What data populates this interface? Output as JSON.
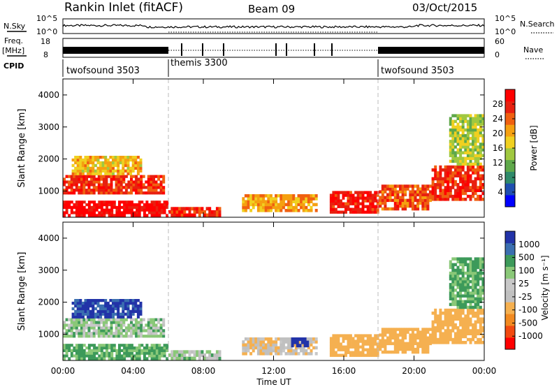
{
  "header": {
    "title": "Rankin Inlet (fitACF)",
    "beam": "Beam 09",
    "date": "03/Oct/2015"
  },
  "strips": {
    "nsky_label": "N.Sky",
    "nsearch_label": "N.Search",
    "freq_label_line1": "Freq.",
    "freq_label_line2": "[MHz]",
    "nave_label": "Nave",
    "cpid_label": "CPID",
    "nsky_left_ticks": [
      "10^5",
      "10^0"
    ],
    "nsky_right_ticks": [
      "10^5",
      "10^0"
    ],
    "freq_left_ticks": [
      "18",
      "8"
    ],
    "freq_right_ticks": [
      "60",
      "0"
    ]
  },
  "cpid_segments": [
    {
      "label": "twofsound 3503",
      "start_h": 0
    },
    {
      "label": "themis 3300",
      "start_h": 6
    },
    {
      "label": "twofsound 3503",
      "start_h": 18
    }
  ],
  "colors": {
    "power": [
      "#0000ff",
      "#1f4fb0",
      "#2f8a6a",
      "#5fa84a",
      "#a0c840",
      "#f0d020",
      "#f5a010",
      "#f06010",
      "#e82010",
      "#ff0000"
    ],
    "velocity": [
      "#ff0000",
      "#f24a10",
      "#f28a20",
      "#f5b050",
      "#c0c0c0",
      "#c8c8c8",
      "#8ac878",
      "#3d9a5a",
      "#3b6fb0",
      "#2233a8"
    ]
  },
  "chart_data": [
    {
      "type": "heatmap",
      "name": "power",
      "ylabel": "Slant Range [km]",
      "xlabel": "",
      "x_ticks": [
        "00:00",
        "04:00",
        "08:00",
        "12:00",
        "16:00",
        "20:00",
        "00:00"
      ],
      "xlim": [
        0,
        24
      ],
      "y_ticks": [
        1000,
        2000,
        3000,
        4000
      ],
      "ylim": [
        180,
        4500
      ],
      "colorbar": {
        "label": "Power [dB]",
        "ticks": [
          4,
          8,
          12,
          16,
          20,
          24,
          28
        ],
        "range": [
          0,
          32
        ]
      },
      "cells": [
        {
          "t0": 0,
          "t1": 6,
          "r0": 200,
          "r1": 700,
          "v": 30
        },
        {
          "t0": 0,
          "t1": 5.8,
          "r0": 900,
          "r1": 1500,
          "v": 26
        },
        {
          "t0": 0.5,
          "t1": 4.5,
          "r0": 1500,
          "r1": 2100,
          "v": 18
        },
        {
          "t0": 6,
          "t1": 9,
          "r0": 200,
          "r1": 500,
          "v": 27
        },
        {
          "t0": 10.2,
          "t1": 14.5,
          "r0": 350,
          "r1": 900,
          "v": 20
        },
        {
          "t0": 15.2,
          "t1": 18,
          "r0": 300,
          "r1": 1000,
          "v": 28
        },
        {
          "t0": 18,
          "t1": 21,
          "r0": 400,
          "r1": 1200,
          "v": 24
        },
        {
          "t0": 21,
          "t1": 24,
          "r0": 700,
          "r1": 1800,
          "v": 26
        },
        {
          "t0": 22,
          "t1": 24,
          "r0": 1800,
          "r1": 3400,
          "v": 14
        }
      ]
    },
    {
      "type": "heatmap",
      "name": "velocity",
      "ylabel": "Slant Range [km]",
      "xlabel": "Time UT",
      "x_ticks": [
        "00:00",
        "04:00",
        "08:00",
        "12:00",
        "16:00",
        "20:00",
        "00:00"
      ],
      "xlim": [
        0,
        24
      ],
      "y_ticks": [
        1000,
        2000,
        3000,
        4000
      ],
      "ylim": [
        180,
        4500
      ],
      "colorbar": {
        "label": "Velocity [m s⁻¹]",
        "ticks": [
          "1000",
          "500",
          "100",
          "25",
          "-25",
          "-100",
          "-500",
          "-1000"
        ]
      },
      "cells": [
        {
          "t0": 0,
          "t1": 6,
          "r0": 200,
          "r1": 700,
          "v": 100
        },
        {
          "t0": 0,
          "t1": 5.8,
          "r0": 900,
          "r1": 1500,
          "v": 25
        },
        {
          "t0": 0.5,
          "t1": 4.5,
          "r0": 1500,
          "r1": 2100,
          "v": 500
        },
        {
          "t0": 6,
          "t1": 9,
          "r0": 200,
          "r1": 500,
          "v": 0
        },
        {
          "t0": 10.2,
          "t1": 14.5,
          "r0": 350,
          "r1": 900,
          "v": -100
        },
        {
          "t0": 13,
          "t1": 14,
          "r0": 600,
          "r1": 900,
          "v": 1000
        },
        {
          "t0": 15.2,
          "t1": 18,
          "r0": 300,
          "r1": 1000,
          "v": -400
        },
        {
          "t0": 18,
          "t1": 21,
          "r0": 400,
          "r1": 1200,
          "v": -300
        },
        {
          "t0": 21,
          "t1": 24,
          "r0": 700,
          "r1": 1800,
          "v": -250
        },
        {
          "t0": 22,
          "t1": 24,
          "r0": 1800,
          "r1": 3400,
          "v": 100
        }
      ]
    }
  ]
}
